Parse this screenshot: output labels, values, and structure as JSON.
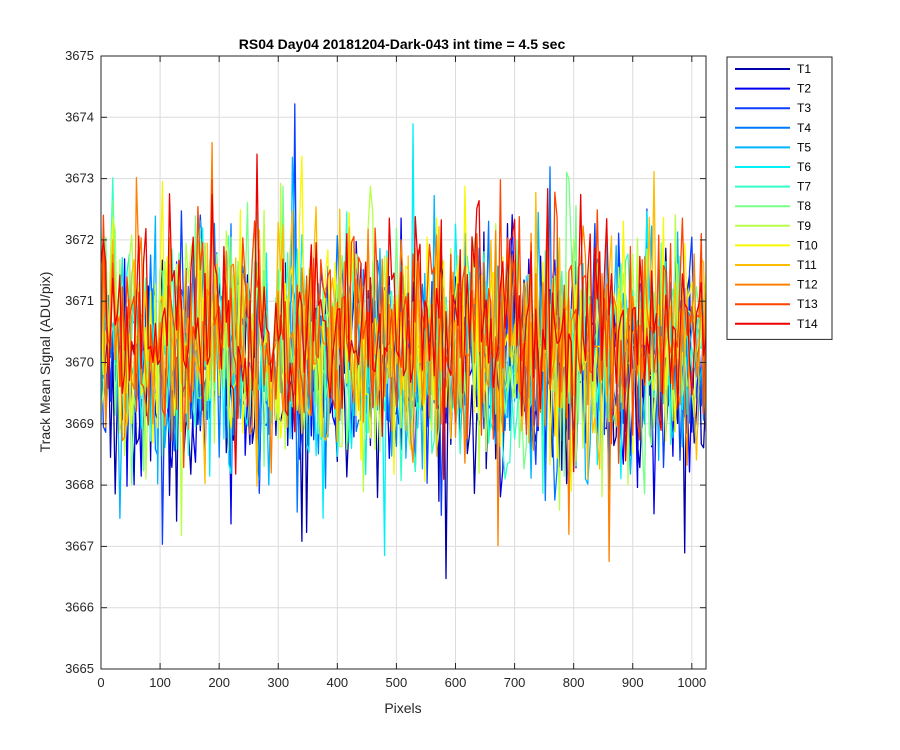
{
  "chart_data": {
    "type": "line",
    "title": "RS04 Day04 20181204-Dark-043 int time = 4.5 sec",
    "xlabel": "Pixels",
    "ylabel": "Track Mean Signal (ADU/pix)",
    "xlim": [
      0,
      1024
    ],
    "ylim": [
      3665,
      3675
    ],
    "xticks": [
      "0",
      "100",
      "200",
      "300",
      "400",
      "500",
      "600",
      "700",
      "800",
      "900",
      "1000"
    ],
    "yticks": [
      "3665",
      "3666",
      "3667",
      "3668",
      "3669",
      "3670",
      "3671",
      "3672",
      "3673",
      "3674",
      "3675"
    ],
    "grid": true,
    "legend_position": "outside-top-right",
    "x": {
      "start": 0,
      "end": 1024,
      "step": 4
    },
    "series": [
      {
        "name": "T1",
        "color": "#0000AA",
        "mean": 3669.8,
        "noise_sd": 0.95
      },
      {
        "name": "T2",
        "color": "#0000EE",
        "mean": 3669.9,
        "noise_sd": 0.95
      },
      {
        "name": "T3",
        "color": "#0A3FFF",
        "mean": 3670.0,
        "noise_sd": 0.95
      },
      {
        "name": "T4",
        "color": "#0078FF",
        "mean": 3670.0,
        "noise_sd": 0.95
      },
      {
        "name": "T5",
        "color": "#00B4FF",
        "mean": 3670.1,
        "noise_sd": 0.95
      },
      {
        "name": "T6",
        "color": "#00F0F8",
        "mean": 3670.2,
        "noise_sd": 0.95
      },
      {
        "name": "T7",
        "color": "#30FFC8",
        "mean": 3670.2,
        "noise_sd": 0.95
      },
      {
        "name": "T8",
        "color": "#78FF88",
        "mean": 3670.3,
        "noise_sd": 0.95
      },
      {
        "name": "T9",
        "color": "#B8FF48",
        "mean": 3670.3,
        "noise_sd": 0.95
      },
      {
        "name": "T10",
        "color": "#F8F800",
        "mean": 3670.4,
        "noise_sd": 0.95
      },
      {
        "name": "T11",
        "color": "#FFBC00",
        "mean": 3670.4,
        "noise_sd": 0.95
      },
      {
        "name": "T12",
        "color": "#FF8000",
        "mean": 3670.4,
        "noise_sd": 0.95
      },
      {
        "name": "T13",
        "color": "#FF4400",
        "mean": 3670.5,
        "noise_sd": 0.95
      },
      {
        "name": "T14",
        "color": "#EE0000",
        "mean": 3670.5,
        "noise_sd": 0.95
      }
    ]
  }
}
